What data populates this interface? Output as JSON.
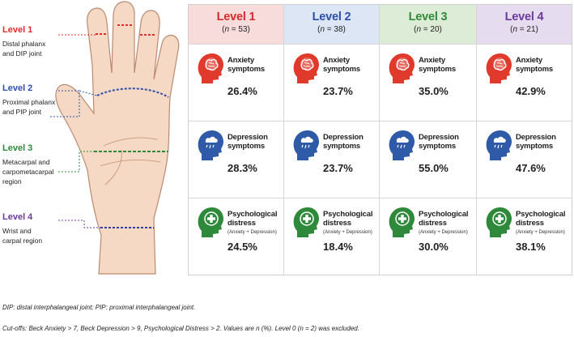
{
  "levels_left": [
    {
      "label": "Level 1",
      "desc1": "Distal phalanx",
      "desc2": "and DIP joint",
      "color": "#e32b2b"
    },
    {
      "label": "Level 2",
      "desc1": "Proximal phalanx",
      "desc2": "and PIP joint",
      "color": "#2f4fae"
    },
    {
      "label": "Level 3",
      "desc1": "Metacarpal and",
      "desc2": "carpometacarpal",
      "desc3": "region",
      "color": "#2e8a3a"
    },
    {
      "label": "Level 4",
      "desc1": "Wrist and",
      "desc2": "carpal region",
      "color": "#6b3a9a"
    }
  ],
  "columns": [
    {
      "title": "Level 1",
      "n_prefix": "(",
      "n_label": "n",
      "n_suffix": " = 53)",
      "color": "#d42a2a",
      "bg": "#f8dcdc"
    },
    {
      "title": "Level 2",
      "n_prefix": "(",
      "n_label": "n",
      "n_suffix": " = 38)",
      "color": "#2c4fa8",
      "bg": "#dce6f5"
    },
    {
      "title": "Level 3",
      "n_prefix": "(",
      "n_label": "n",
      "n_suffix": " = 20)",
      "color": "#2e8a3a",
      "bg": "#dcecd6"
    },
    {
      "title": "Level 4",
      "n_prefix": "(",
      "n_label": "n",
      "n_suffix": " = 21)",
      "color": "#6b3a9a",
      "bg": "#e6dcf0"
    }
  ],
  "rows": [
    {
      "line1": "Anxiety",
      "line2": "symptoms",
      "sub": "",
      "icon": "brain-head-icon",
      "icon_color": "#e03a2c",
      "values": [
        "26.4%",
        "23.7%",
        "35.0%",
        "42.9%"
      ]
    },
    {
      "line1": "Depression",
      "line2": "symptoms",
      "sub": "",
      "icon": "rain-cloud-head-icon",
      "icon_color": "#2f5aa8",
      "values": [
        "28.3%",
        "23.7%",
        "55.0%",
        "47.6%"
      ]
    },
    {
      "line1": "Psychological",
      "line2": "distress",
      "sub": "(Anxiety + Depression)",
      "icon": "plus-head-icon",
      "icon_color": "#2e8a3a",
      "values": [
        "24.5%",
        "18.4%",
        "30.0%",
        "38.1%"
      ]
    }
  ],
  "footnotes": {
    "abbr": "DIP: distal interphalangeal joint; PIP: proximal interphalangeal joint.",
    "cutoff": "Cut-offs: Beck Anxiety > 7, Beck Depression > 9, Psychological Distress > 2. Values are n (%). Level 0 (n = 2) was excluded."
  }
}
